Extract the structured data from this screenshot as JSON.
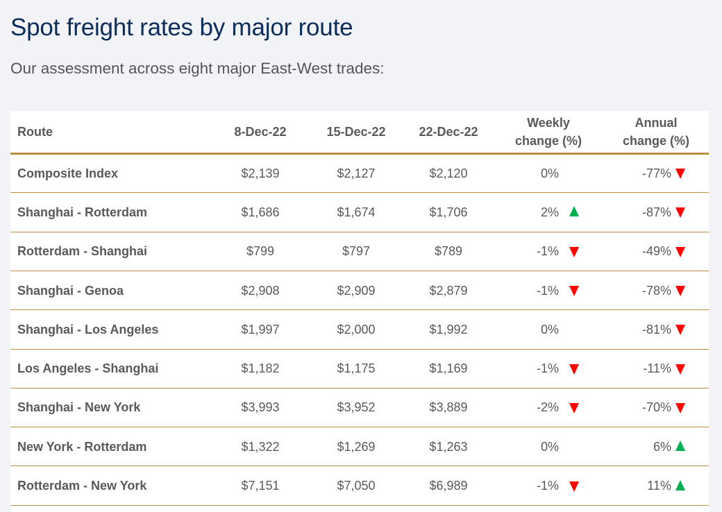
{
  "title": "Spot freight rates by major route",
  "subtitle": "Our assessment across eight major East-West trades:",
  "colors": {
    "title": "#0c2d5b",
    "rule": "#b8903c",
    "up": "#00b050",
    "down": "#ff0000"
  },
  "table": {
    "headers": {
      "route": "Route",
      "d1": "8-Dec-22",
      "d2": "15-Dec-22",
      "d3": "22-Dec-22",
      "weekly_1": "Weekly",
      "weekly_2": "change (%)",
      "annual_1": "Annual",
      "annual_2": "change (%)"
    },
    "rows": [
      {
        "route": "Composite Index",
        "d1": "$2,139",
        "d2": "$2,127",
        "d3": "$2,120",
        "weekly": "0%",
        "weekly_dir": "none",
        "annual": "-77%",
        "annual_dir": "down"
      },
      {
        "route": "Shanghai - Rotterdam",
        "d1": "$1,686",
        "d2": "$1,674",
        "d3": "$1,706",
        "weekly": "2%",
        "weekly_dir": "up",
        "annual": "-87%",
        "annual_dir": "down"
      },
      {
        "route": "Rotterdam - Shanghai",
        "d1": "$799",
        "d2": "$797",
        "d3": "$789",
        "weekly": "-1%",
        "weekly_dir": "down",
        "annual": "-49%",
        "annual_dir": "down"
      },
      {
        "route": "Shanghai - Genoa",
        "d1": "$2,908",
        "d2": "$2,909",
        "d3": "$2,879",
        "weekly": "-1%",
        "weekly_dir": "down",
        "annual": "-78%",
        "annual_dir": "down"
      },
      {
        "route": "Shanghai - Los Angeles",
        "d1": "$1,997",
        "d2": "$2,000",
        "d3": "$1,992",
        "weekly": "0%",
        "weekly_dir": "none",
        "annual": "-81%",
        "annual_dir": "down"
      },
      {
        "route": "Los Angeles - Shanghai",
        "d1": "$1,182",
        "d2": "$1,175",
        "d3": "$1,169",
        "weekly": "-1%",
        "weekly_dir": "down",
        "annual": "-11%",
        "annual_dir": "down"
      },
      {
        "route": "Shanghai - New York",
        "d1": "$3,993",
        "d2": "$3,952",
        "d3": "$3,889",
        "weekly": "-2%",
        "weekly_dir": "down",
        "annual": "-70%",
        "annual_dir": "down"
      },
      {
        "route": "New York - Rotterdam",
        "d1": "$1,322",
        "d2": "$1,269",
        "d3": "$1,263",
        "weekly": "0%",
        "weekly_dir": "none",
        "annual": "6%",
        "annual_dir": "up"
      },
      {
        "route": "Rotterdam - New York",
        "d1": "$7,151",
        "d2": "$7,050",
        "d3": "$6,989",
        "weekly": "-1%",
        "weekly_dir": "down",
        "annual": "11%",
        "annual_dir": "up"
      }
    ]
  }
}
